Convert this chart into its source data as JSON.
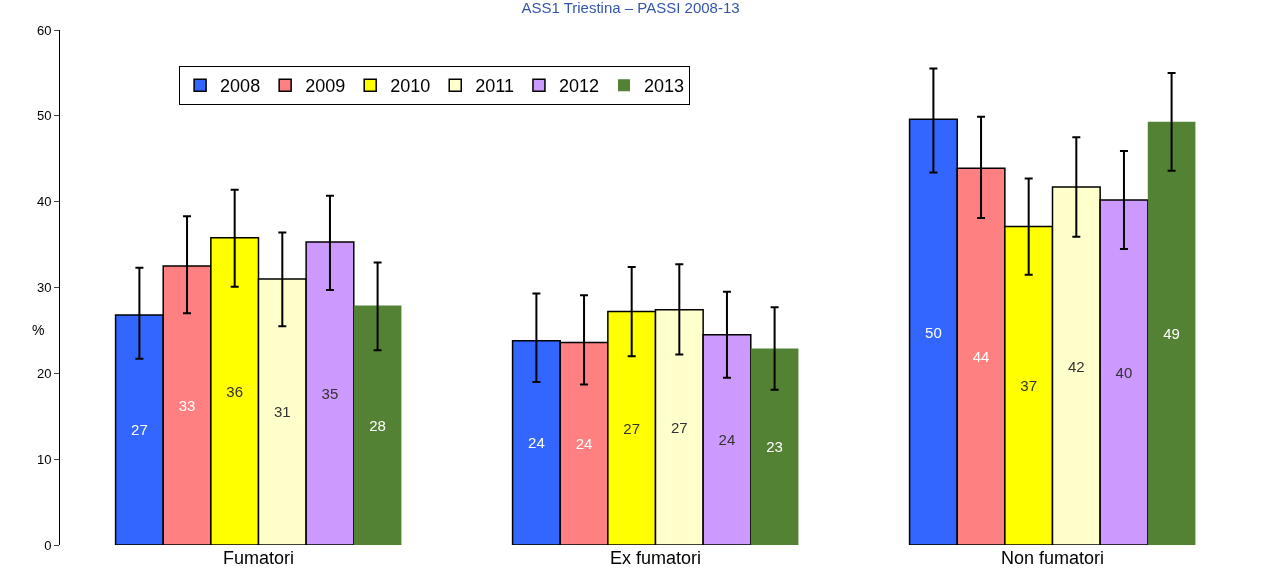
{
  "chart_data": {
    "type": "bar",
    "title": "ASS1 Triestina – PASSI 2008-13",
    "ylabel": "%",
    "categories": [
      "Fumatori",
      "Ex fumatori",
      "Non fumatori"
    ],
    "ylim": [
      0,
      60
    ],
    "yticks": [
      0,
      10,
      20,
      30,
      40,
      50,
      60
    ],
    "legend": "top left",
    "series": [
      {
        "name": "2008",
        "color": "#3366ff",
        "values": [
          26.8,
          23.8,
          49.6
        ],
        "errors": [
          [
            21.7,
            32.3
          ],
          [
            19.0,
            29.3
          ],
          [
            43.4,
            55.5
          ]
        ],
        "value_labels": [
          "27",
          "24",
          "50"
        ]
      },
      {
        "name": "2009",
        "color": "#ff8080",
        "values": [
          32.5,
          23.6,
          43.9
        ],
        "errors": [
          [
            27.0,
            38.3
          ],
          [
            18.7,
            29.1
          ],
          [
            38.1,
            49.9
          ]
        ],
        "value_labels": [
          "33",
          "24",
          "44"
        ]
      },
      {
        "name": "2010",
        "color": "#ffff00",
        "values": [
          35.8,
          27.2,
          37.1
        ],
        "errors": [
          [
            30.1,
            41.4
          ],
          [
            22.0,
            32.4
          ],
          [
            31.5,
            42.7
          ]
        ],
        "value_labels": [
          "36",
          "27",
          "37"
        ]
      },
      {
        "name": "2011",
        "color": "#ffffcc",
        "values": [
          31.0,
          27.4,
          41.7
        ],
        "errors": [
          [
            25.5,
            36.4
          ],
          [
            22.2,
            32.7
          ],
          [
            35.9,
            47.5
          ]
        ],
        "value_labels": [
          "31",
          "27",
          "42"
        ]
      },
      {
        "name": "2012",
        "color": "#cc99ff",
        "values": [
          35.3,
          24.5,
          40.2
        ],
        "errors": [
          [
            29.7,
            40.7
          ],
          [
            19.5,
            29.5
          ],
          [
            34.5,
            45.9
          ]
        ],
        "value_labels": [
          "35",
          "24",
          "40"
        ]
      },
      {
        "name": "2013",
        "color": "#548235",
        "values": [
          27.9,
          22.9,
          49.3
        ],
        "errors": [
          [
            22.7,
            32.9
          ],
          [
            18.1,
            27.7
          ],
          [
            43.6,
            55.0
          ]
        ],
        "value_labels": [
          "28",
          "23",
          "49"
        ]
      }
    ]
  }
}
